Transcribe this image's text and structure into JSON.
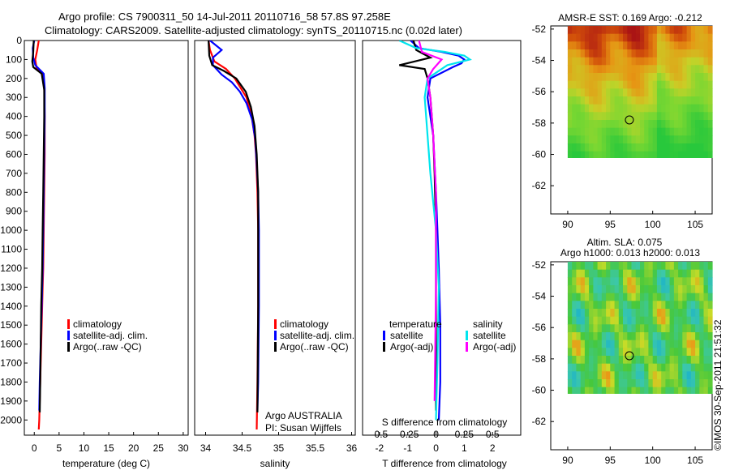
{
  "title": {
    "line1": "Argo profile: CS 7900311_50 14-Jul-2011 20110716_58 57.8S 97.258E",
    "line2": "Climatology: CARS2009. Satellite-adjusted climatology: synTS_20110715.nc (0.02d later)"
  },
  "colors": {
    "climatology": "#ff0000",
    "satellite": "#0000ff",
    "argo": "#000000",
    "sal_satellite": "#00e5ee",
    "sal_argo": "#ff00ff"
  },
  "chart_data": [
    {
      "type": "line",
      "id": "temperature",
      "xlabel": "temperature (deg C)",
      "ylabel": "",
      "xlim": [
        -2,
        31
      ],
      "ylim": [
        2080,
        0
      ],
      "xticks": [
        0,
        5,
        10,
        15,
        20,
        25,
        30
      ],
      "yticks": [
        0,
        100,
        200,
        300,
        400,
        500,
        600,
        700,
        800,
        900,
        1000,
        1100,
        1200,
        1300,
        1400,
        1500,
        1600,
        1700,
        1800,
        1900,
        2000
      ],
      "legend": [
        "climatology",
        "satellite-adj. clim.",
        "Argo(..raw -QC)"
      ],
      "series": [
        {
          "name": "climatology",
          "color": "#ff0000",
          "x": [
            0.9,
            0.6,
            0.2,
            0.5,
            1.8,
            2.0,
            2.1,
            2.1,
            2.0,
            1.9,
            1.8,
            1.7,
            1.6,
            1.5,
            1.4,
            1.3,
            1.2,
            1.1,
            1.0,
            0.9
          ],
          "y": [
            0,
            50,
            100,
            150,
            175,
            250,
            400,
            600,
            800,
            1000,
            1200,
            1300,
            1400,
            1500,
            1600,
            1700,
            1800,
            1900,
            2000,
            2050
          ]
        },
        {
          "name": "satellite-adj. clim.",
          "color": "#0000ff",
          "x": [
            0.0,
            -0.3,
            -0.2,
            0.2,
            1.9,
            2.1,
            2.1,
            2.0,
            1.9,
            1.8,
            1.7,
            1.6,
            1.5,
            1.4,
            1.3,
            1.2,
            1.1,
            1.0
          ],
          "y": [
            0,
            40,
            90,
            130,
            175,
            250,
            400,
            600,
            800,
            1000,
            1200,
            1300,
            1400,
            1500,
            1600,
            1700,
            1800,
            1950
          ]
        },
        {
          "name": "Argo(..raw -QC)",
          "color": "#000000",
          "x": [
            -0.1,
            -0.2,
            -0.4,
            -0.2,
            1.5,
            2.0,
            2.0,
            1.9,
            1.8,
            1.7,
            1.6,
            1.4,
            1.3,
            1.2,
            1.1
          ],
          "y": [
            0,
            60,
            110,
            140,
            175,
            260,
            400,
            600,
            800,
            1000,
            1200,
            1400,
            1600,
            1800,
            1960
          ]
        }
      ]
    },
    {
      "type": "line",
      "id": "salinity",
      "xlabel": "salinity",
      "xlim": [
        33.85,
        36.05
      ],
      "ylim": [
        2080,
        0
      ],
      "xticks": [
        34,
        34.5,
        35,
        35.5,
        36
      ],
      "legend": [
        "climatology",
        "satellite-adj. clim.",
        "Argo(..raw -QC)"
      ],
      "annotation": [
        "Argo AUSTRALIA",
        "PI: Susan Wijffels"
      ],
      "series": [
        {
          "name": "climatology",
          "color": "#ff0000",
          "x": [
            34.04,
            34.06,
            34.12,
            34.28,
            34.4,
            34.48,
            34.56,
            34.63,
            34.67,
            34.69,
            34.71,
            34.72,
            34.72,
            34.71,
            34.7
          ],
          "y": [
            0,
            50,
            110,
            150,
            200,
            250,
            300,
            400,
            500,
            600,
            800,
            1000,
            1400,
            1800,
            2050
          ]
        },
        {
          "name": "satellite-adj. clim.",
          "color": "#0000ff",
          "x": [
            34.06,
            34.22,
            34.1,
            34.1,
            34.22,
            34.36,
            34.47,
            34.56,
            34.64,
            34.68,
            34.7,
            34.72,
            34.73,
            34.73,
            34.72,
            34.71
          ],
          "y": [
            0,
            50,
            90,
            130,
            180,
            220,
            270,
            330,
            420,
            520,
            650,
            800,
            1000,
            1400,
            1800,
            1950
          ]
        },
        {
          "name": "Argo(..raw -QC)",
          "color": "#000000",
          "x": [
            34.04,
            34.05,
            34.09,
            34.25,
            34.42,
            34.55,
            34.62,
            34.67,
            34.7,
            34.72,
            34.72,
            34.71
          ],
          "y": [
            0,
            80,
            130,
            160,
            200,
            270,
            350,
            450,
            600,
            800,
            1400,
            1960
          ]
        }
      ]
    },
    {
      "type": "line",
      "id": "difference",
      "xlabel": "T difference from climatology",
      "xlabel2": "S difference from climatology",
      "xlim": [
        -2.6,
        3.0
      ],
      "ylim": [
        2080,
        0
      ],
      "xticks": [
        -2,
        -1,
        0,
        1,
        2
      ],
      "sticks": [
        "-0.5",
        "-0.25",
        "0",
        "0.25",
        "0.5"
      ],
      "stick_values": [
        -2,
        -1,
        0,
        1,
        2
      ],
      "legend_titles": [
        "temperature",
        "salinity"
      ],
      "legend": [
        {
          "label": "satellite",
          "color": "#0000ff"
        },
        {
          "label": "Argo(-adj)",
          "color": "#000000"
        },
        {
          "label": "satellite",
          "color": "#00e5ee"
        },
        {
          "label": "Argo(-adj)",
          "color": "#ff00ff"
        }
      ],
      "series": [
        {
          "name": "T satellite",
          "color": "#0000ff",
          "x": [
            -0.9,
            -0.6,
            0.2,
            0.8,
            1.0,
            0.9,
            0.6,
            -0.2,
            -0.3,
            -0.1,
            0.0,
            0.05,
            0.1,
            0.15,
            0.15,
            0.1
          ],
          "y": [
            0,
            40,
            60,
            80,
            100,
            120,
            140,
            200,
            300,
            500,
            800,
            1000,
            1200,
            1500,
            1800,
            2000
          ]
        },
        {
          "name": "T Argo(-adj)",
          "color": "#000000",
          "x": [
            -0.8,
            -0.7,
            -0.2,
            -1.3,
            -0.4,
            -0.3,
            -0.2,
            -0.1,
            -0.05,
            0.0,
            0.0,
            0.0
          ],
          "y": [
            0,
            50,
            90,
            130,
            150,
            200,
            300,
            500,
            700,
            1000,
            1500,
            1950
          ]
        },
        {
          "name": "S satellite",
          "color": "#00e5ee",
          "x": [
            -1.3,
            -0.7,
            0.3,
            1.0,
            1.2,
            0.4,
            -0.3,
            -0.4,
            -0.3,
            -0.2,
            0.0,
            0.1,
            0.05,
            0.0
          ],
          "y": [
            0,
            40,
            60,
            80,
            100,
            130,
            200,
            300,
            500,
            700,
            1000,
            1300,
            1700,
            2000
          ]
        },
        {
          "name": "S Argo(-adj)",
          "color": "#ff00ff",
          "x": [
            -0.6,
            -0.5,
            0.2,
            -0.1,
            -0.3,
            -0.2,
            -0.1,
            0.0,
            0.0,
            -0.05
          ],
          "y": [
            0,
            60,
            100,
            150,
            200,
            300,
            500,
            800,
            1300,
            1900
          ]
        }
      ]
    },
    {
      "type": "heatmap",
      "id": "sst-map",
      "title": "AMSR-E SST: 0.169 Argo: -0.212",
      "xlim": [
        88,
        107
      ],
      "ylim": [
        -63.8,
        -51.8
      ],
      "xticks": [
        90,
        95,
        100,
        105
      ],
      "yticks": [
        -52,
        -54,
        -56,
        -58,
        -60,
        -62
      ],
      "data_lat_min": -60.2,
      "marker": {
        "lon": 97.258,
        "lat": -57.8
      }
    },
    {
      "type": "heatmap",
      "id": "sla-map",
      "title": "Altim. SLA: 0.075",
      "subtitle": "Argo h1000: 0.013 h2000: 0.013",
      "xlim": [
        88,
        107
      ],
      "ylim": [
        -63.8,
        -51.8
      ],
      "xticks": [
        90,
        95,
        100,
        105
      ],
      "yticks": [
        -52,
        -54,
        -56,
        -58,
        -60,
        -62
      ],
      "data_lat_min": -60.2,
      "marker": {
        "lon": 97.258,
        "lat": -57.8
      }
    }
  ],
  "watermark": "©IMOS 30-Sep-2011 21:51:32"
}
